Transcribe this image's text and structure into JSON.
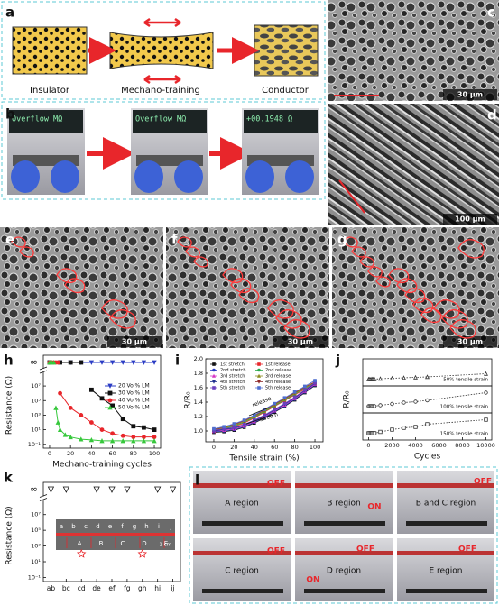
{
  "panel_labels": [
    "a",
    "b",
    "c",
    "d",
    "e",
    "f",
    "g",
    "h",
    "i",
    "j",
    "k",
    "l"
  ],
  "schematic": {
    "stages": [
      "Insulator",
      "Mechano-training",
      "Conductor"
    ]
  },
  "multimeter": {
    "readings": [
      "Overflow MΩ",
      "Overflow MΩ",
      "+00.1948 Ω"
    ]
  },
  "sem": {
    "scale_bars": [
      "30 μm",
      "100 μm",
      "30 μm",
      "30 μm",
      "30 μm"
    ]
  },
  "inset": {
    "points": [
      "a",
      "b",
      "c",
      "d",
      "e",
      "f",
      "g",
      "h",
      "i",
      "j"
    ],
    "regions": [
      "A",
      "B",
      "C",
      "D",
      "E"
    ],
    "scale": "1 cm"
  },
  "photos": [
    {
      "region": "A region",
      "states": [
        "OFF"
      ]
    },
    {
      "region": "B region",
      "states": [
        "ON"
      ]
    },
    {
      "region": "B and C region",
      "states": [
        "OFF"
      ]
    },
    {
      "region": "C region",
      "states": [
        "OFF"
      ]
    },
    {
      "region": "D region",
      "states": [
        "ON",
        "OFF"
      ]
    },
    {
      "region": "E region",
      "states": [
        "OFF"
      ]
    }
  ],
  "chart_data": [
    {
      "type": "logline",
      "xlabel": "Mechano-training cycles",
      "ylabel": "Resistance (Ω)",
      "log_y": true,
      "overflow_label": "∞",
      "xlim": [
        -6,
        106
      ],
      "ylim": [
        0.03,
        100000000
      ],
      "xticks": [
        0,
        20,
        40,
        60,
        80,
        100
      ],
      "yticks": [
        {
          "value": 0.1,
          "label": "10⁻¹"
        },
        {
          "value": 10,
          "label": "10¹"
        },
        {
          "value": 1000,
          "label": "10³"
        },
        {
          "value": 100000,
          "label": "10⁵"
        },
        {
          "value": 10000000,
          "label": "10⁷"
        }
      ],
      "legend": "upper right",
      "series": [
        {
          "name": "20 Vol% LM",
          "color": "#2b3cc4",
          "marker": "triangle-down",
          "x": [
            0,
            10,
            20,
            30,
            40,
            50,
            60,
            70,
            80,
            90,
            100
          ],
          "values": [
            null,
            null,
            null,
            null,
            null,
            null,
            null,
            null,
            null,
            null,
            null
          ],
          "open_circuit": [
            true,
            true,
            true,
            true,
            true,
            true,
            true,
            true,
            true,
            true,
            true
          ]
        },
        {
          "name": "30 Vol% LM",
          "color": "#111111",
          "marker": "square",
          "x": [
            0,
            10,
            20,
            30,
            40,
            50,
            60,
            70,
            80,
            90,
            100
          ],
          "values": [
            null,
            null,
            null,
            null,
            3000000,
            200000,
            20000,
            300,
            30,
            20,
            10
          ],
          "open_circuit": [
            true,
            true,
            true,
            true,
            false,
            false,
            false,
            false,
            false,
            false,
            false
          ]
        },
        {
          "name": "40 Vol% LM",
          "color": "#e8262b",
          "marker": "circle",
          "x": [
            0,
            2,
            4,
            6,
            8,
            10,
            20,
            30,
            40,
            50,
            60,
            70,
            80,
            90,
            100
          ],
          "values": [
            null,
            null,
            null,
            null,
            null,
            1000000,
            10000,
            1000,
            100,
            10,
            3,
            1.5,
            1,
            1,
            1
          ],
          "open_circuit": [
            true,
            true,
            true,
            true,
            true,
            false,
            false,
            false,
            false,
            false,
            false,
            false,
            false,
            false,
            false
          ]
        },
        {
          "name": "50 Vol% LM",
          "color": "#37c83c",
          "marker": "triangle-up",
          "x": [
            0,
            2,
            4,
            6,
            8,
            10,
            15,
            20,
            30,
            40,
            50,
            60,
            70,
            80,
            90,
            100
          ],
          "values": [
            null,
            null,
            null,
            10000,
            100,
            10,
            2,
            1,
            0.5,
            0.4,
            0.3,
            0.3,
            0.3,
            0.3,
            0.3,
            0.3
          ],
          "open_circuit": [
            true,
            true,
            true,
            false,
            false,
            false,
            false,
            false,
            false,
            false,
            false,
            false,
            false,
            false,
            false,
            false
          ]
        }
      ]
    },
    {
      "type": "line",
      "xlabel": "Tensile strain (%)",
      "ylabel": "R/R₀",
      "xlim": [
        -8,
        108
      ],
      "ylim": [
        0.85,
        2.0
      ],
      "xticks": [
        0,
        20,
        40,
        60,
        80,
        100
      ],
      "yticks": [
        {
          "value": 1,
          "label": "1.0"
        },
        {
          "value": 1.2,
          "label": "1.2"
        },
        {
          "value": 1.4,
          "label": "1.4"
        },
        {
          "value": 1.6,
          "label": "1.6"
        },
        {
          "value": 1.8,
          "label": "1.8"
        },
        {
          "value": 2,
          "label": "2.0"
        }
      ],
      "annotations": [
        "release",
        "stretch"
      ],
      "x": [
        0,
        10,
        20,
        30,
        40,
        50,
        60,
        70,
        80,
        90,
        100
      ],
      "series": [
        {
          "name": "1st stretch",
          "color": "#111111",
          "values": [
            0.98,
            0.99,
            1.01,
            1.05,
            1.11,
            1.18,
            1.26,
            1.34,
            1.43,
            1.53,
            1.63
          ]
        },
        {
          "name": "1st release",
          "color": "#e8262b",
          "values": [
            0.99,
            1.02,
            1.06,
            1.11,
            1.18,
            1.26,
            1.34,
            1.42,
            1.5,
            1.58,
            1.65
          ]
        },
        {
          "name": "2nd stretch",
          "color": "#2b3cc4",
          "values": [
            0.99,
            1.0,
            1.02,
            1.06,
            1.12,
            1.19,
            1.27,
            1.35,
            1.44,
            1.54,
            1.64
          ]
        },
        {
          "name": "2nd release",
          "color": "#2aa84a",
          "values": [
            1.0,
            1.03,
            1.07,
            1.12,
            1.19,
            1.27,
            1.35,
            1.43,
            1.51,
            1.59,
            1.66
          ]
        },
        {
          "name": "3rd stretch",
          "color": "#d633c4",
          "values": [
            1.0,
            1.01,
            1.03,
            1.07,
            1.13,
            1.2,
            1.28,
            1.36,
            1.45,
            1.55,
            1.65
          ]
        },
        {
          "name": "3rd release",
          "color": "#8a8a1e",
          "values": [
            1.01,
            1.04,
            1.08,
            1.13,
            1.2,
            1.28,
            1.36,
            1.44,
            1.52,
            1.6,
            1.67
          ]
        },
        {
          "name": "4th stretch",
          "color": "#1f2f8f",
          "values": [
            1.0,
            1.02,
            1.04,
            1.08,
            1.14,
            1.21,
            1.29,
            1.37,
            1.46,
            1.56,
            1.66
          ]
        },
        {
          "name": "4th release",
          "color": "#8e2a2a",
          "values": [
            1.02,
            1.05,
            1.09,
            1.14,
            1.21,
            1.29,
            1.37,
            1.45,
            1.53,
            1.61,
            1.68
          ]
        },
        {
          "name": "5th stretch",
          "color": "#6a3fbf",
          "values": [
            1.01,
            1.03,
            1.05,
            1.09,
            1.15,
            1.22,
            1.3,
            1.38,
            1.47,
            1.57,
            1.67
          ]
        },
        {
          "name": "5th release",
          "color": "#4f6fd0",
          "values": [
            1.03,
            1.06,
            1.1,
            1.15,
            1.22,
            1.3,
            1.38,
            1.46,
            1.54,
            1.62,
            1.7
          ]
        }
      ]
    },
    {
      "type": "bands",
      "xlabel": "Cycles",
      "ylabel": "R/R₀",
      "xlim": [
        -500,
        10500
      ],
      "ylim": [
        0.85,
        1.45
      ],
      "xticks": [
        0,
        2000,
        4000,
        6000,
        8000,
        10000
      ],
      "x": [
        0,
        100,
        200,
        300,
        400,
        500,
        1000,
        2000,
        3000,
        4000,
        5000,
        10000
      ],
      "series": [
        {
          "name": "50% tensile strain",
          "color": "#333333",
          "marker": "triangle-up",
          "values": [
            1,
            1,
            1,
            1,
            1,
            1,
            1.01,
            1.02,
            1.03,
            1.04,
            1.05,
            1.12
          ]
        },
        {
          "name": "100% tensile strain",
          "color": "#333333",
          "marker": "circle",
          "values": [
            1,
            1,
            1,
            1,
            1,
            1,
            1.02,
            1.05,
            1.08,
            1.1,
            1.13,
            1.3
          ]
        },
        {
          "name": "150% tensile strain",
          "color": "#333333",
          "marker": "square",
          "values": [
            1,
            1,
            1,
            1,
            1,
            1,
            1.03,
            1.08,
            1.12,
            1.14,
            1.2,
            1.3
          ]
        }
      ]
    },
    {
      "type": "logscatter",
      "ylabel": "Resistance (Ω)",
      "log_y": true,
      "overflow_label": "∞",
      "ylim": [
        0.03,
        100000000
      ],
      "yticks": [
        {
          "value": 0.1,
          "label": "10⁻¹"
        },
        {
          "value": 10,
          "label": "10¹"
        },
        {
          "value": 1000,
          "label": "10³"
        },
        {
          "value": 100000,
          "label": "10⁵"
        },
        {
          "value": 10000000,
          "label": "10⁷"
        }
      ],
      "categories": [
        "ab",
        "bc",
        "cd",
        "de",
        "ef",
        "fg",
        "gh",
        "hi",
        "ij"
      ],
      "values": [
        null,
        null,
        100,
        null,
        null,
        null,
        100,
        null,
        null
      ],
      "open_circuit": [
        true,
        true,
        false,
        true,
        true,
        true,
        false,
        true,
        true
      ]
    }
  ]
}
